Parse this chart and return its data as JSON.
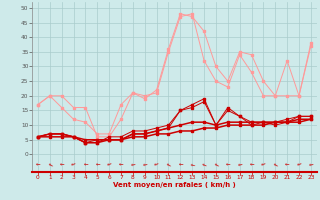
{
  "x": [
    0,
    1,
    2,
    3,
    4,
    5,
    6,
    7,
    8,
    9,
    10,
    11,
    12,
    13,
    14,
    15,
    16,
    17,
    18,
    19,
    20,
    21,
    22,
    23
  ],
  "line1": [
    17,
    20,
    20,
    16,
    16,
    6,
    6,
    12,
    21,
    19,
    22,
    36,
    48,
    47,
    42,
    30,
    25,
    35,
    34,
    25,
    20,
    20,
    20,
    38
  ],
  "line2": [
    17,
    20,
    16,
    12,
    11,
    7,
    7,
    17,
    21,
    20,
    21,
    35,
    47,
    48,
    32,
    25,
    23,
    34,
    28,
    20,
    20,
    32,
    20,
    37
  ],
  "line3": [
    6,
    7,
    7,
    6,
    4,
    4,
    6,
    6,
    8,
    8,
    9,
    10,
    15,
    17,
    19,
    10,
    16,
    13,
    11,
    11,
    11,
    12,
    13,
    13
  ],
  "line4": [
    6,
    7,
    7,
    6,
    4,
    5,
    5,
    5,
    7,
    7,
    8,
    9,
    15,
    16,
    18,
    10,
    15,
    13,
    10,
    11,
    10,
    11,
    13,
    13
  ],
  "line5": [
    6,
    7,
    7,
    6,
    4,
    4,
    5,
    5,
    7,
    7,
    8,
    9,
    10,
    11,
    11,
    10,
    11,
    11,
    11,
    11,
    11,
    11,
    12,
    12
  ],
  "line6": [
    6,
    6,
    6,
    6,
    5,
    5,
    5,
    5,
    6,
    6,
    7,
    7,
    8,
    8,
    9,
    9,
    10,
    10,
    10,
    10,
    11,
    11,
    11,
    12
  ],
  "bg_color": "#ceeaea",
  "grid_color": "#aacccc",
  "line_color_dark": "#cc0000",
  "line_color_light": "#ff9999",
  "xlabel": "Vent moyen/en rafales ( km/h )",
  "ylim": [
    -6,
    52
  ],
  "xlim": [
    -0.5,
    23.5
  ],
  "yticks": [
    0,
    5,
    10,
    15,
    20,
    25,
    30,
    35,
    40,
    45,
    50
  ],
  "xticks": [
    0,
    1,
    2,
    3,
    4,
    5,
    6,
    7,
    8,
    9,
    10,
    11,
    12,
    13,
    14,
    15,
    16,
    17,
    18,
    19,
    20,
    21,
    22,
    23
  ]
}
